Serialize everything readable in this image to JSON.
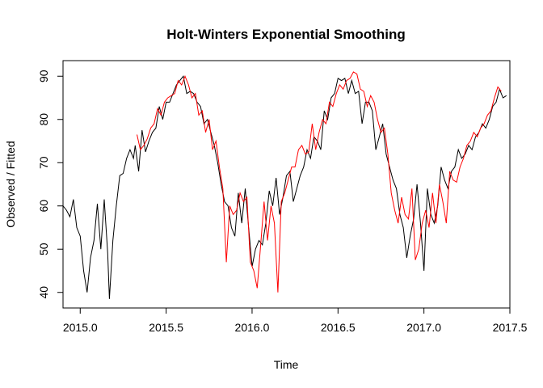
{
  "chart_data": {
    "type": "line",
    "title": "Holt-Winters Exponential Smoothing",
    "xlabel": "Time",
    "ylabel": "Observed / Fitted",
    "xlim": [
      2014.9,
      2017.5
    ],
    "ylim": [
      36.4,
      93.6
    ],
    "x_ticks": [
      "2015.0",
      "2015.5",
      "2016.0",
      "2016.5",
      "2017.0",
      "2017.5"
    ],
    "y_ticks": [
      "40",
      "50",
      "60",
      "70",
      "80",
      "90"
    ],
    "grid": false,
    "legend": "none",
    "series": [
      {
        "color": "#000000",
        "points": [
          [
            2014.9,
            60.0
          ],
          [
            2014.92,
            59.0
          ],
          [
            2014.94,
            57.5
          ],
          [
            2014.96,
            61.5
          ],
          [
            2014.98,
            55.0
          ],
          [
            2015.0,
            53.0
          ],
          [
            2015.02,
            45.0
          ],
          [
            2015.04,
            40.0
          ],
          [
            2015.06,
            48.0
          ],
          [
            2015.08,
            52.0
          ],
          [
            2015.1,
            60.5
          ],
          [
            2015.12,
            50.0
          ],
          [
            2015.14,
            61.5
          ],
          [
            2015.16,
            49.0
          ],
          [
            2015.17,
            38.5
          ],
          [
            2015.19,
            52.0
          ],
          [
            2015.21,
            60.0
          ],
          [
            2015.23,
            67.0
          ],
          [
            2015.25,
            67.5
          ],
          [
            2015.27,
            71.0
          ],
          [
            2015.29,
            73.0
          ],
          [
            2015.31,
            71.0
          ],
          [
            2015.32,
            74.0
          ],
          [
            2015.34,
            68.0
          ],
          [
            2015.36,
            77.5
          ],
          [
            2015.38,
            72.5
          ],
          [
            2015.4,
            75.0
          ],
          [
            2015.42,
            77.0
          ],
          [
            2015.44,
            78.0
          ],
          [
            2015.46,
            83.0
          ],
          [
            2015.48,
            80.0
          ],
          [
            2015.5,
            84.0
          ],
          [
            2015.52,
            84.0
          ],
          [
            2015.54,
            86.0
          ],
          [
            2015.56,
            88.0
          ],
          [
            2015.58,
            89.0
          ],
          [
            2015.6,
            90.0
          ],
          [
            2015.62,
            86.0
          ],
          [
            2015.64,
            86.5
          ],
          [
            2015.66,
            86.0
          ],
          [
            2015.68,
            84.0
          ],
          [
            2015.7,
            83.0
          ],
          [
            2015.72,
            79.0
          ],
          [
            2015.74,
            80.0
          ],
          [
            2015.76,
            77.0
          ],
          [
            2015.78,
            74.0
          ],
          [
            2015.8,
            70.0
          ],
          [
            2015.82,
            65.0
          ],
          [
            2015.84,
            61.0
          ],
          [
            2015.86,
            60.0
          ],
          [
            2015.88,
            55.0
          ],
          [
            2015.9,
            53.0
          ],
          [
            2015.92,
            63.0
          ],
          [
            2015.94,
            56.0
          ],
          [
            2015.96,
            64.0
          ],
          [
            2015.98,
            55.0
          ],
          [
            2016.0,
            46.0
          ],
          [
            2016.02,
            50.0
          ],
          [
            2016.04,
            52.0
          ],
          [
            2016.06,
            51.0
          ],
          [
            2016.08,
            56.0
          ],
          [
            2016.1,
            63.5
          ],
          [
            2016.12,
            60.0
          ],
          [
            2016.14,
            66.5
          ],
          [
            2016.16,
            58.0
          ],
          [
            2016.18,
            62.0
          ],
          [
            2016.2,
            67.0
          ],
          [
            2016.22,
            68.0
          ],
          [
            2016.24,
            61.0
          ],
          [
            2016.26,
            64.0
          ],
          [
            2016.28,
            67.0
          ],
          [
            2016.3,
            69.0
          ],
          [
            2016.32,
            73.0
          ],
          [
            2016.34,
            71.0
          ],
          [
            2016.36,
            76.0
          ],
          [
            2016.38,
            75.0
          ],
          [
            2016.4,
            73.0
          ],
          [
            2016.42,
            82.0
          ],
          [
            2016.44,
            80.0
          ],
          [
            2016.46,
            85.0
          ],
          [
            2016.48,
            86.0
          ],
          [
            2016.5,
            89.5
          ],
          [
            2016.52,
            89.0
          ],
          [
            2016.54,
            89.5
          ],
          [
            2016.56,
            86.0
          ],
          [
            2016.58,
            89.0
          ],
          [
            2016.6,
            86.0
          ],
          [
            2016.62,
            86.5
          ],
          [
            2016.64,
            79.0
          ],
          [
            2016.66,
            84.0
          ],
          [
            2016.68,
            84.0
          ],
          [
            2016.7,
            82.0
          ],
          [
            2016.72,
            73.0
          ],
          [
            2016.74,
            76.0
          ],
          [
            2016.76,
            79.0
          ],
          [
            2016.78,
            72.0
          ],
          [
            2016.8,
            69.0
          ],
          [
            2016.82,
            66.0
          ],
          [
            2016.84,
            64.0
          ],
          [
            2016.86,
            58.0
          ],
          [
            2016.88,
            55.0
          ],
          [
            2016.9,
            48.0
          ],
          [
            2016.92,
            53.0
          ],
          [
            2016.94,
            57.0
          ],
          [
            2016.96,
            65.0
          ],
          [
            2016.98,
            56.0
          ],
          [
            2017.0,
            45.0
          ],
          [
            2017.02,
            64.0
          ],
          [
            2017.04,
            58.0
          ],
          [
            2017.06,
            56.0
          ],
          [
            2017.08,
            60.0
          ],
          [
            2017.1,
            69.0
          ],
          [
            2017.12,
            66.0
          ],
          [
            2017.14,
            64.0
          ],
          [
            2017.16,
            68.0
          ],
          [
            2017.18,
            69.0
          ],
          [
            2017.2,
            73.0
          ],
          [
            2017.22,
            71.0
          ],
          [
            2017.24,
            72.0
          ],
          [
            2017.26,
            74.0
          ],
          [
            2017.28,
            73.0
          ],
          [
            2017.3,
            76.0
          ],
          [
            2017.32,
            77.0
          ],
          [
            2017.34,
            79.0
          ],
          [
            2017.36,
            78.0
          ],
          [
            2017.38,
            80.0
          ],
          [
            2017.4,
            83.0
          ],
          [
            2017.42,
            84.0
          ],
          [
            2017.44,
            87.0
          ],
          [
            2017.46,
            85.0
          ],
          [
            2017.48,
            85.5
          ]
        ]
      },
      {
        "color": "#FF0000",
        "points": [
          [
            2015.33,
            76.5
          ],
          [
            2015.35,
            73.0
          ],
          [
            2015.37,
            74.0
          ],
          [
            2015.39,
            75.5
          ],
          [
            2015.41,
            78.0
          ],
          [
            2015.43,
            79.0
          ],
          [
            2015.45,
            82.5
          ],
          [
            2015.47,
            81.0
          ],
          [
            2015.49,
            84.0
          ],
          [
            2015.51,
            85.0
          ],
          [
            2015.53,
            85.5
          ],
          [
            2015.55,
            86.0
          ],
          [
            2015.57,
            89.0
          ],
          [
            2015.59,
            88.0
          ],
          [
            2015.61,
            90.0
          ],
          [
            2015.63,
            88.0
          ],
          [
            2015.65,
            85.0
          ],
          [
            2015.67,
            86.0
          ],
          [
            2015.69,
            81.0
          ],
          [
            2015.71,
            82.0
          ],
          [
            2015.73,
            77.0
          ],
          [
            2015.75,
            80.0
          ],
          [
            2015.77,
            73.0
          ],
          [
            2015.79,
            75.0
          ],
          [
            2015.81,
            69.0
          ],
          [
            2015.83,
            64.0
          ],
          [
            2015.85,
            47.0
          ],
          [
            2015.87,
            60.0
          ],
          [
            2015.89,
            58.0
          ],
          [
            2015.91,
            59.0
          ],
          [
            2015.93,
            63.0
          ],
          [
            2015.95,
            61.0
          ],
          [
            2015.97,
            62.0
          ],
          [
            2015.99,
            47.0
          ],
          [
            2016.01,
            45.0
          ],
          [
            2016.03,
            41.0
          ],
          [
            2016.05,
            51.0
          ],
          [
            2016.07,
            61.0
          ],
          [
            2016.09,
            52.0
          ],
          [
            2016.11,
            60.0
          ],
          [
            2016.13,
            56.0
          ],
          [
            2016.15,
            40.0
          ],
          [
            2016.17,
            61.0
          ],
          [
            2016.19,
            63.0
          ],
          [
            2016.21,
            66.0
          ],
          [
            2016.23,
            69.0
          ],
          [
            2016.25,
            69.0
          ],
          [
            2016.27,
            73.0
          ],
          [
            2016.29,
            74.0
          ],
          [
            2016.31,
            72.0
          ],
          [
            2016.33,
            72.5
          ],
          [
            2016.35,
            79.0
          ],
          [
            2016.37,
            73.0
          ],
          [
            2016.39,
            77.0
          ],
          [
            2016.41,
            80.0
          ],
          [
            2016.43,
            79.0
          ],
          [
            2016.45,
            84.0
          ],
          [
            2016.47,
            83.0
          ],
          [
            2016.49,
            86.0
          ],
          [
            2016.51,
            88.0
          ],
          [
            2016.53,
            87.0
          ],
          [
            2016.55,
            89.0
          ],
          [
            2016.57,
            89.5
          ],
          [
            2016.59,
            91.0
          ],
          [
            2016.61,
            90.5
          ],
          [
            2016.63,
            87.0
          ],
          [
            2016.65,
            86.5
          ],
          [
            2016.67,
            83.0
          ],
          [
            2016.69,
            85.5
          ],
          [
            2016.71,
            84.0
          ],
          [
            2016.73,
            80.0
          ],
          [
            2016.75,
            77.0
          ],
          [
            2016.77,
            78.0
          ],
          [
            2016.79,
            72.0
          ],
          [
            2016.81,
            63.0
          ],
          [
            2016.83,
            59.0
          ],
          [
            2016.85,
            56.0
          ],
          [
            2016.87,
            62.0
          ],
          [
            2016.89,
            58.0
          ],
          [
            2016.91,
            57.0
          ],
          [
            2016.93,
            64.0
          ],
          [
            2016.95,
            47.5
          ],
          [
            2016.97,
            50.0
          ],
          [
            2016.99,
            56.0
          ],
          [
            2017.01,
            59.0
          ],
          [
            2017.03,
            55.0
          ],
          [
            2017.05,
            63.0
          ],
          [
            2017.07,
            56.0
          ],
          [
            2017.09,
            65.0
          ],
          [
            2017.11,
            61.0
          ],
          [
            2017.13,
            56.0
          ],
          [
            2017.15,
            68.0
          ],
          [
            2017.17,
            66.0
          ],
          [
            2017.19,
            65.5
          ],
          [
            2017.21,
            69.0
          ],
          [
            2017.23,
            71.0
          ],
          [
            2017.25,
            74.0
          ],
          [
            2017.27,
            75.0
          ],
          [
            2017.29,
            77.0
          ],
          [
            2017.31,
            76.0
          ],
          [
            2017.33,
            78.0
          ],
          [
            2017.35,
            79.0
          ],
          [
            2017.37,
            81.0
          ],
          [
            2017.39,
            82.0
          ],
          [
            2017.41,
            85.0
          ],
          [
            2017.43,
            87.5
          ],
          [
            2017.45,
            86.5
          ]
        ]
      }
    ]
  }
}
